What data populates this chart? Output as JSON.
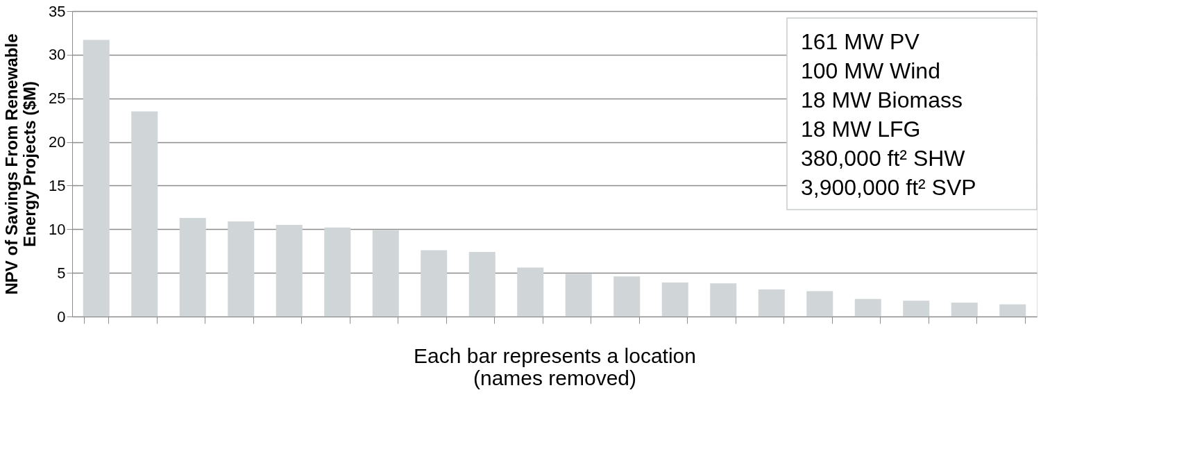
{
  "chart_data": {
    "type": "bar",
    "xlabel": "Each bar represents  a location\n(names removed)",
    "ylabel": "NPV of Savings From Renewable\nEnergy Projects ($M)",
    "categories": [
      null,
      null,
      null,
      null,
      null,
      null,
      null,
      null,
      null,
      null,
      null,
      null,
      null,
      null,
      null,
      null,
      null,
      null,
      null,
      null
    ],
    "values": [
      31.7,
      23.5,
      11.3,
      10.9,
      10.5,
      10.2,
      9.9,
      7.6,
      7.4,
      5.6,
      4.9,
      4.6,
      3.9,
      3.8,
      3.1,
      2.9,
      2.0,
      1.8,
      1.6,
      1.4
    ],
    "color": "#d0d5d8",
    "ylim": [
      0,
      35
    ],
    "yticks": [
      0,
      5,
      10,
      15,
      20,
      25,
      30,
      35
    ],
    "grid": "y",
    "annotations": [
      "161 MW PV",
      "100 MW Wind",
      "18 MW Biomass",
      "18 MW LFG",
      "380,000 ft² SHW",
      "3,900,000 ft² SVP"
    ]
  }
}
